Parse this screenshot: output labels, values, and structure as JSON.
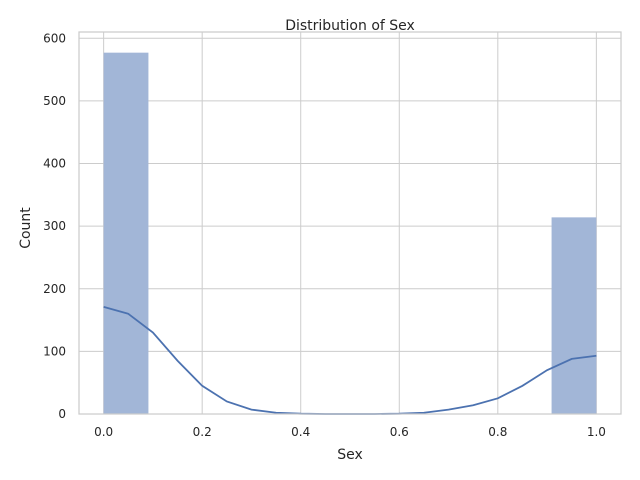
{
  "chart_data": {
    "type": "bar",
    "title": "Distribution of Sex",
    "xlabel": "Sex",
    "ylabel": "Count",
    "xlim": [
      -0.05,
      1.05
    ],
    "ylim": [
      0,
      610
    ],
    "xticks": [
      0.0,
      0.2,
      0.4,
      0.6,
      0.8,
      1.0
    ],
    "xtick_labels": [
      "0.0",
      "0.2",
      "0.4",
      "0.6",
      "0.8",
      "1.0"
    ],
    "yticks": [
      0,
      100,
      200,
      300,
      400,
      500,
      600
    ],
    "ytick_labels": [
      "0",
      "100",
      "200",
      "300",
      "400",
      "500",
      "600"
    ],
    "grid": true,
    "histogram": {
      "bin_width": 0.0909,
      "bins": [
        {
          "x_start": 0.0,
          "x_end": 0.0909,
          "count": 577
        },
        {
          "x_start": 0.9091,
          "x_end": 1.0,
          "count": 314
        }
      ]
    },
    "kde": {
      "x": [
        0.0,
        0.05,
        0.1,
        0.15,
        0.2,
        0.25,
        0.3,
        0.35,
        0.4,
        0.45,
        0.5,
        0.55,
        0.6,
        0.65,
        0.7,
        0.75,
        0.8,
        0.85,
        0.9,
        0.95,
        1.0
      ],
      "y": [
        171,
        160,
        130,
        85,
        45,
        20,
        7,
        2,
        0.5,
        0,
        0,
        0,
        0.5,
        2,
        7,
        14,
        25,
        45,
        70,
        88,
        93
      ]
    },
    "colors": {
      "bar": "#a2b6d7",
      "line": "#4c72b0",
      "grid": "#cccccc"
    }
  }
}
